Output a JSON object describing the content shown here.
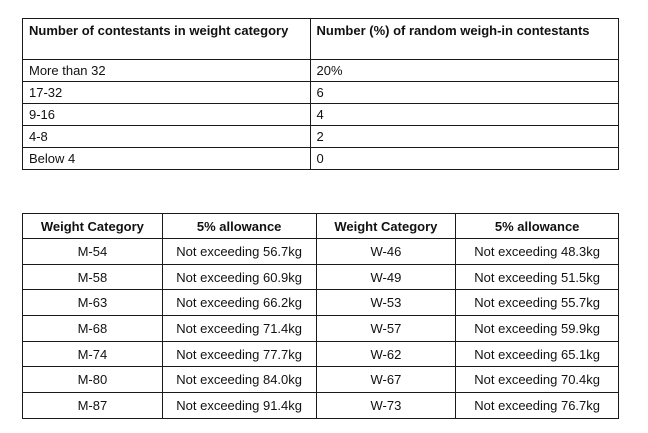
{
  "sampling_table": {
    "headers": {
      "contestants": "Number of contestants in weight category",
      "random": "Number (%) of random weigh-in contestants"
    },
    "rows": [
      {
        "contestants": "More than 32",
        "random": "20%"
      },
      {
        "contestants": "17-32",
        "random": "6"
      },
      {
        "contestants": "9-16",
        "random": "4"
      },
      {
        "contestants": "4-8",
        "random": "2"
      },
      {
        "contestants": "Below 4",
        "random": "0"
      }
    ]
  },
  "allowance_table": {
    "headers": {
      "men_category": "Weight Category",
      "men_allowance": "5% allowance",
      "women_category": "Weight Category",
      "women_allowance": "5% allowance"
    },
    "rows": [
      {
        "m_cat": "M-54",
        "m_allow": "Not exceeding 56.7kg",
        "w_cat": "W-46",
        "w_allow": "Not exceeding 48.3kg"
      },
      {
        "m_cat": "M-58",
        "m_allow": "Not exceeding 60.9kg",
        "w_cat": "W-49",
        "w_allow": "Not exceeding 51.5kg"
      },
      {
        "m_cat": "M-63",
        "m_allow": "Not exceeding 66.2kg",
        "w_cat": "W-53",
        "w_allow": "Not exceeding 55.7kg"
      },
      {
        "m_cat": "M-68",
        "m_allow": "Not exceeding 71.4kg",
        "w_cat": "W-57",
        "w_allow": "Not exceeding 59.9kg"
      },
      {
        "m_cat": "M-74",
        "m_allow": "Not exceeding 77.7kg",
        "w_cat": "W-62",
        "w_allow": "Not exceeding 65.1kg"
      },
      {
        "m_cat": "M-80",
        "m_allow": "Not exceeding 84.0kg",
        "w_cat": "W-67",
        "w_allow": "Not exceeding 70.4kg"
      },
      {
        "m_cat": "M-87",
        "m_allow": "Not exceeding 91.4kg",
        "w_cat": "W-73",
        "w_allow": "Not exceeding 76.7kg"
      }
    ]
  }
}
